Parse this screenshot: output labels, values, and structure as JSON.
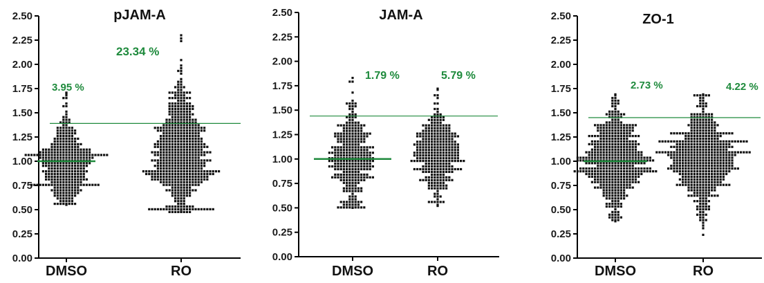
{
  "chart_data": [
    {
      "type": "scatter",
      "title": "pJAM-A",
      "categories": [
        "DMSO",
        "RO"
      ],
      "y_ticks": [
        "0.00",
        "0.25",
        "0.50",
        "0.75",
        "1.00",
        "1.25",
        "1.50",
        "1.75",
        "2.00",
        "2.25",
        "2.50"
      ],
      "ylim": [
        0,
        2.5
      ],
      "threshold": 1.39,
      "reference_line": 1.0,
      "percent_labels": [
        "3.95 %",
        "23.34 %"
      ],
      "series": [
        {
          "category": "DMSO",
          "n": 380,
          "min": 0.55,
          "max": 1.7,
          "median": 0.97
        },
        {
          "category": "RO",
          "n": 600,
          "min": 0.48,
          "max": 2.3,
          "median": 1.07
        }
      ]
    },
    {
      "type": "scatter",
      "title": "JAM-A",
      "categories": [
        "DMSO",
        "RO"
      ],
      "y_ticks": [
        "0.00",
        "0.25",
        "0.50",
        "0.75",
        "1.00",
        "1.25",
        "1.50",
        "1.75",
        "2.00",
        "2.25",
        "2.50"
      ],
      "ylim": [
        0,
        2.5
      ],
      "threshold": 1.44,
      "reference_line": 1.0,
      "percent_labels": [
        "1.79 %",
        "5.79 %"
      ],
      "series": [
        {
          "category": "DMSO",
          "n": 330,
          "min": 0.5,
          "max": 1.83,
          "median": 1.0
        },
        {
          "category": "RO",
          "n": 330,
          "min": 0.52,
          "max": 1.72,
          "median": 1.08
        }
      ]
    },
    {
      "type": "scatter",
      "title": "ZO-1",
      "categories": [
        "DMSO",
        "RO"
      ],
      "y_ticks": [
        "0.00",
        "0.25",
        "0.50",
        "0.75",
        "1.00",
        "1.25",
        "1.50",
        "1.75",
        "2.00",
        "2.25",
        "2.50"
      ],
      "ylim": [
        0,
        2.5
      ],
      "threshold": 1.45,
      "reference_line": 1.0,
      "percent_labels": [
        "2.73 %",
        "4.22 %"
      ],
      "series": [
        {
          "category": "DMSO",
          "n": 520,
          "min": 0.38,
          "max": 1.69,
          "median": 1.0
        },
        {
          "category": "RO",
          "n": 560,
          "min": 0.24,
          "max": 1.69,
          "median": 1.03
        }
      ]
    }
  ],
  "colors": {
    "dots": "#111111",
    "threshold_line": "#1e8a3c",
    "reference_line": "#1e8a3c",
    "percent_text": "#1e8a3c",
    "axis": "#000000"
  }
}
